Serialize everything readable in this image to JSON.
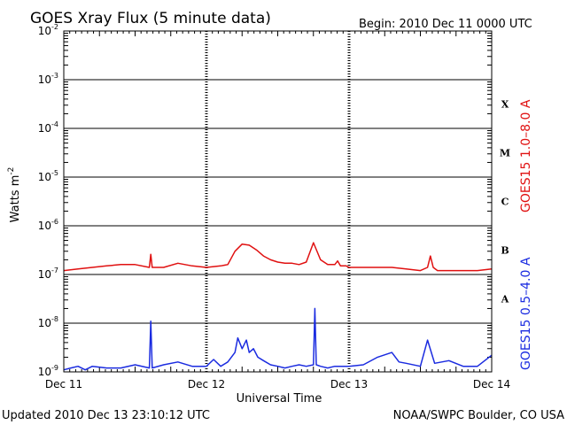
{
  "header": {
    "title": "GOES Xray Flux (5 minute data)",
    "begin_label": "Begin:  2010 Dec 11 0000 UTC"
  },
  "footer": {
    "updated": "Updated 2010 Dec 13 23:10:12 UTC",
    "credit": "NOAA/SWPC Boulder, CO USA"
  },
  "colors": {
    "long_channel": "#e01010",
    "short_channel": "#1a2be0",
    "axes": "#000000",
    "background": "#ffffff"
  },
  "chart_data": {
    "type": "line",
    "title": "GOES Xray Flux (5 minute data)",
    "xlabel": "Universal Time",
    "ylabel": "Watts m",
    "ylabel_superscript": "-2",
    "yscale": "log",
    "ylim": [
      1e-09,
      0.01
    ],
    "xlim_days": [
      0,
      3
    ],
    "grid": true,
    "x_ticks": [
      {
        "day": 0,
        "label": "Dec 11"
      },
      {
        "day": 1,
        "label": "Dec 12"
      },
      {
        "day": 2,
        "label": "Dec 13"
      },
      {
        "day": 3,
        "label": "Dec 14"
      }
    ],
    "y_ticks": [
      {
        "exp": -2,
        "base": "10",
        "sup": "-2"
      },
      {
        "exp": -3,
        "base": "10",
        "sup": "-3"
      },
      {
        "exp": -4,
        "base": "10",
        "sup": "-4"
      },
      {
        "exp": -5,
        "base": "10",
        "sup": "-5"
      },
      {
        "exp": -6,
        "base": "10",
        "sup": "-6"
      },
      {
        "exp": -7,
        "base": "10",
        "sup": "-7"
      },
      {
        "exp": -8,
        "base": "10",
        "sup": "-8"
      },
      {
        "exp": -9,
        "base": "10",
        "sup": "-9"
      }
    ],
    "flare_classes": [
      {
        "label": "X",
        "exp": -3
      },
      {
        "label": "M",
        "exp": -4
      },
      {
        "label": "C",
        "exp": -5
      },
      {
        "label": "B",
        "exp": -6
      },
      {
        "label": "A",
        "exp": -7
      }
    ],
    "series": [
      {
        "name": "GOES15 1.0–8.0 A",
        "color": "#e01010",
        "x_day": [
          0,
          0.1,
          0.2,
          0.3,
          0.4,
          0.5,
          0.6,
          0.61,
          0.62,
          0.7,
          0.8,
          0.9,
          1.0,
          1.1,
          1.15,
          1.2,
          1.25,
          1.3,
          1.35,
          1.4,
          1.45,
          1.5,
          1.55,
          1.6,
          1.65,
          1.7,
          1.75,
          1.8,
          1.85,
          1.9,
          1.92,
          1.94,
          1.98,
          2.0,
          2.1,
          2.2,
          2.3,
          2.4,
          2.5,
          2.55,
          2.57,
          2.59,
          2.62,
          2.7,
          2.8,
          2.9,
          3.0
        ],
        "y": [
          1.2e-07,
          1.3e-07,
          1.4e-07,
          1.5e-07,
          1.6e-07,
          1.6e-07,
          1.4e-07,
          2.6e-07,
          1.4e-07,
          1.4e-07,
          1.7e-07,
          1.5e-07,
          1.4e-07,
          1.5e-07,
          1.6e-07,
          3e-07,
          4.2e-07,
          4e-07,
          3.2e-07,
          2.4e-07,
          2e-07,
          1.8e-07,
          1.7e-07,
          1.7e-07,
          1.6e-07,
          1.8e-07,
          4.5e-07,
          2e-07,
          1.6e-07,
          1.6e-07,
          1.9e-07,
          1.5e-07,
          1.5e-07,
          1.4e-07,
          1.4e-07,
          1.4e-07,
          1.4e-07,
          1.3e-07,
          1.2e-07,
          1.4e-07,
          2.4e-07,
          1.4e-07,
          1.2e-07,
          1.2e-07,
          1.2e-07,
          1.2e-07,
          1.3e-07
        ]
      },
      {
        "name": "GOES15 0.5–4.0 A",
        "color": "#1a2be0",
        "x_day": [
          0,
          0.05,
          0.1,
          0.15,
          0.2,
          0.3,
          0.4,
          0.5,
          0.6,
          0.61,
          0.62,
          0.7,
          0.8,
          0.9,
          1.0,
          1.05,
          1.1,
          1.15,
          1.2,
          1.22,
          1.25,
          1.28,
          1.3,
          1.33,
          1.36,
          1.4,
          1.45,
          1.5,
          1.55,
          1.6,
          1.65,
          1.7,
          1.75,
          1.76,
          1.77,
          1.8,
          1.85,
          1.9,
          1.95,
          2.0,
          2.1,
          2.2,
          2.3,
          2.35,
          2.4,
          2.5,
          2.55,
          2.6,
          2.7,
          2.8,
          2.9,
          3.0
        ],
        "y": [
          1.1e-09,
          1.2e-09,
          1.3e-09,
          1.1e-09,
          1.3e-09,
          1.2e-09,
          1.2e-09,
          1.4e-09,
          1.2e-09,
          1.1e-08,
          1.2e-09,
          1.4e-09,
          1.6e-09,
          1.3e-09,
          1.3e-09,
          1.8e-09,
          1.3e-09,
          1.6e-09,
          2.5e-09,
          5e-09,
          3e-09,
          4.5e-09,
          2.5e-09,
          3e-09,
          2e-09,
          1.7e-09,
          1.4e-09,
          1.3e-09,
          1.2e-09,
          1.3e-09,
          1.4e-09,
          1.3e-09,
          1.4e-09,
          2e-08,
          1.4e-09,
          1.3e-09,
          1.2e-09,
          1.3e-09,
          1.3e-09,
          1.3e-09,
          1.4e-09,
          2e-09,
          2.5e-09,
          1.6e-09,
          1.5e-09,
          1.3e-09,
          4.5e-09,
          1.5e-09,
          1.7e-09,
          1.3e-09,
          1.3e-09,
          2.2e-09
        ]
      }
    ]
  }
}
